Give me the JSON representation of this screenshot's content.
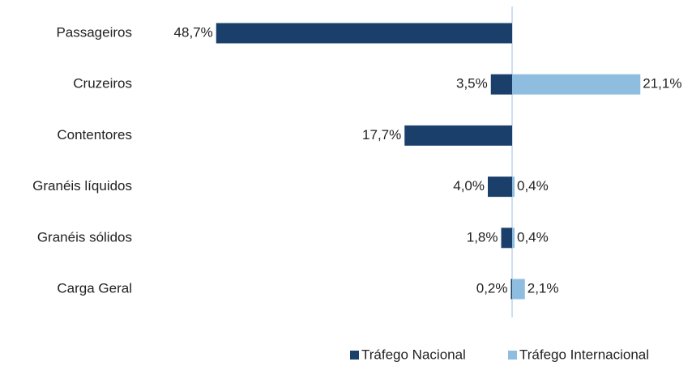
{
  "chart_data": {
    "type": "diverging-bar",
    "categories": [
      "Passageiros",
      "Cruzeiros",
      "Contentores",
      "Granéis líquidos",
      "Granéis sólidos",
      "Carga Geral"
    ],
    "series": [
      {
        "name": "Tráfego Nacional",
        "color": "#1b3f6b",
        "side": "left",
        "values": [
          48.7,
          3.5,
          17.7,
          4.0,
          1.8,
          0.2
        ],
        "value_labels": [
          "48,7%",
          "3,5%",
          "17,7%",
          "4,0%",
          "1,8%",
          "0,2%"
        ]
      },
      {
        "name": "Tráfego Internacional",
        "color": "#8fbde0",
        "side": "right",
        "values": [
          null,
          21.1,
          null,
          0.4,
          0.4,
          2.1
        ],
        "value_labels": [
          null,
          "21,1%",
          null,
          "0,4%",
          "0,4%",
          "2,1%"
        ]
      }
    ],
    "legend": "bottom-right"
  }
}
